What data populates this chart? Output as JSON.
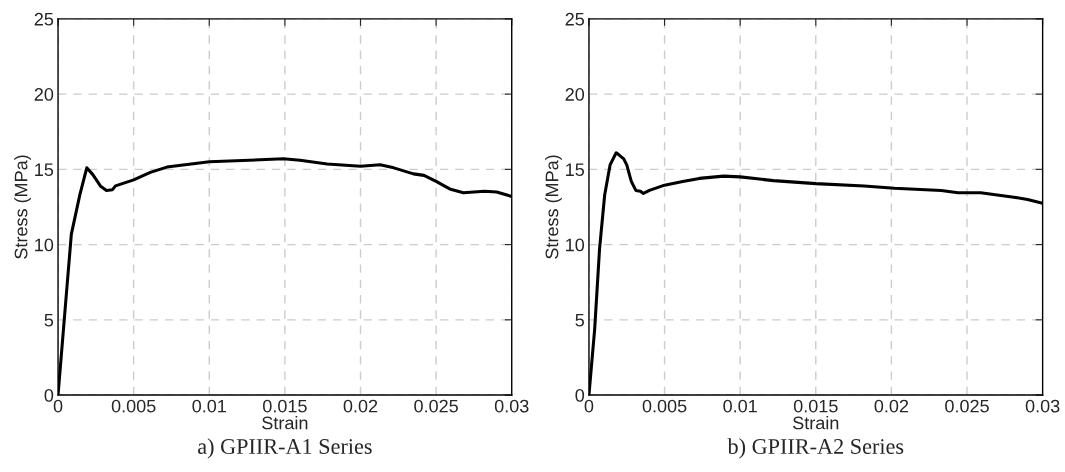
{
  "chart_data": [
    {
      "type": "line",
      "title": "a) GPIIR-A1 Series",
      "xlabel": "Strain",
      "ylabel": "Stress (MPa)",
      "xlim": [
        0,
        0.03
      ],
      "ylim": [
        0,
        25
      ],
      "xticks": [
        0,
        0.005,
        0.01,
        0.015,
        0.02,
        0.025,
        0.03
      ],
      "yticks": [
        0,
        5,
        10,
        15,
        20,
        25
      ],
      "grid": true,
      "line_style": "solid",
      "series": [
        {
          "color": "#000000",
          "x": [
            0,
            0.00055,
            0.00088,
            0.00144,
            0.0019,
            0.0023,
            0.0028,
            0.0032,
            0.0036,
            0.0038,
            0.005,
            0.0061,
            0.0072,
            0.01,
            0.0149,
            0.016,
            0.0178,
            0.02,
            0.0213,
            0.0222,
            0.0235,
            0.0242,
            0.025,
            0.0259,
            0.0268,
            0.0282,
            0.029,
            0.03
          ],
          "values": [
            0,
            6.7,
            10.7,
            13.3,
            15.1,
            14.65,
            13.9,
            13.6,
            13.65,
            13.9,
            14.3,
            14.8,
            15.15,
            15.5,
            15.7,
            15.6,
            15.35,
            15.2,
            15.3,
            15.1,
            14.7,
            14.6,
            14.2,
            13.7,
            13.45,
            13.55,
            13.5,
            13.2
          ]
        }
      ]
    },
    {
      "type": "line",
      "title": "b) GPIIR-A2 Series",
      "xlabel": "Strain",
      "ylabel": "Stress (MPa)",
      "xlim": [
        0,
        0.03
      ],
      "ylim": [
        0,
        25
      ],
      "xticks": [
        0,
        0.005,
        0.01,
        0.015,
        0.02,
        0.025,
        0.03
      ],
      "yticks": [
        0,
        5,
        10,
        15,
        20,
        25
      ],
      "grid": true,
      "line_style": "solid",
      "series": [
        {
          "color": "#000000",
          "x": [
            0,
            0.00038,
            0.0007,
            0.00104,
            0.0014,
            0.0018,
            0.002,
            0.0023,
            0.0025,
            0.0028,
            0.0031,
            0.0034,
            0.0036,
            0.004,
            0.005,
            0.0062,
            0.0073,
            0.0089,
            0.01,
            0.0122,
            0.015,
            0.0182,
            0.0202,
            0.0233,
            0.0244,
            0.0259,
            0.0281,
            0.029,
            0.03
          ],
          "values": [
            0,
            4.4,
            9.7,
            13.3,
            15.3,
            16.1,
            15.95,
            15.7,
            15.3,
            14.2,
            13.6,
            13.55,
            13.4,
            13.6,
            13.95,
            14.2,
            14.4,
            14.55,
            14.5,
            14.25,
            14.05,
            13.9,
            13.75,
            13.6,
            13.45,
            13.45,
            13.15,
            13.0,
            12.75
          ]
        }
      ]
    }
  ]
}
